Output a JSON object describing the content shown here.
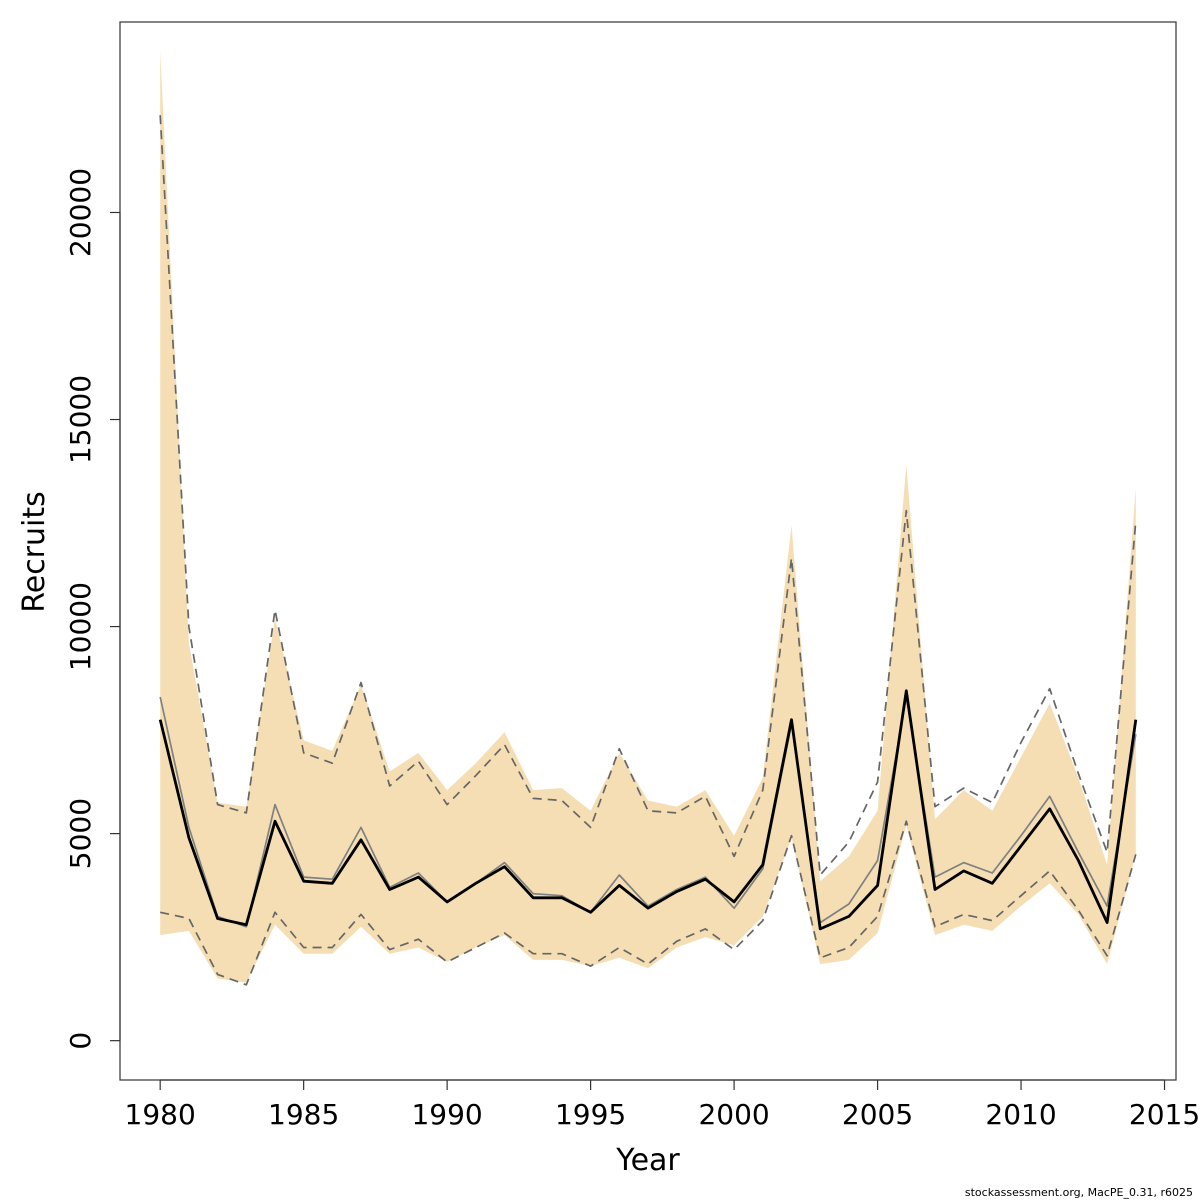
{
  "chart_data": {
    "type": "area",
    "xlabel": "Year",
    "ylabel": "Recruits",
    "xlim": [
      1978.6,
      2015.4
    ],
    "ylim": [
      -950,
      24600
    ],
    "x_ticks": [
      1980,
      1985,
      1990,
      1995,
      2000,
      2005,
      2010,
      2015
    ],
    "y_ticks": [
      0,
      5000,
      10000,
      15000,
      20000
    ],
    "x_tick_labels": [
      "1980",
      "1985",
      "1990",
      "1995",
      "2000",
      "2005",
      "2010",
      "2015"
    ],
    "y_tick_labels": [
      "0",
      "5000",
      "10000",
      "15000",
      "20000"
    ],
    "grid": false,
    "legend": "none",
    "x": [
      1980,
      1981,
      1982,
      1983,
      1984,
      1985,
      1986,
      1987,
      1988,
      1989,
      1990,
      1991,
      1992,
      1993,
      1994,
      1995,
      1996,
      1997,
      1998,
      1999,
      2000,
      2001,
      2002,
      2003,
      2004,
      2005,
      2006,
      2007,
      2008,
      2009,
      2010,
      2011,
      2012,
      2013,
      2014
    ],
    "series": [
      {
        "role": "band",
        "color": "#f5deb3",
        "upper": [
          23900,
          9600,
          5750,
          5650,
          10200,
          7250,
          7000,
          8600,
          6500,
          6950,
          6050,
          6700,
          7450,
          6050,
          6100,
          5550,
          6950,
          5800,
          5650,
          6050,
          4950,
          6350,
          12450,
          3850,
          4450,
          5550,
          13900,
          5350,
          6050,
          5550,
          6850,
          8150,
          6350,
          4250,
          13350
        ],
        "lower": [
          2550,
          2650,
          1500,
          1400,
          2800,
          2100,
          2100,
          2750,
          2100,
          2250,
          1900,
          2250,
          2550,
          1950,
          1950,
          1800,
          2000,
          1750,
          2250,
          2500,
          2300,
          3000,
          4900,
          1850,
          1950,
          2600,
          5200,
          2550,
          2800,
          2650,
          3250,
          3800,
          3050,
          1850,
          4500
        ]
      },
      {
        "role": "estimate",
        "color": "#000000",
        "values": [
          7750,
          4900,
          2950,
          2800,
          5300,
          3850,
          3800,
          4850,
          3650,
          3950,
          3350,
          3800,
          4200,
          3450,
          3450,
          3100,
          3750,
          3200,
          3600,
          3900,
          3350,
          4250,
          7750,
          2700,
          3000,
          3750,
          8450,
          3650,
          4100,
          3800,
          4700,
          5600,
          4350,
          2850,
          7750
        ]
      },
      {
        "role": "alternative",
        "color": "#808080",
        "values": [
          8300,
          5150,
          3000,
          2750,
          5700,
          3950,
          3900,
          5150,
          3700,
          4050,
          3350,
          3800,
          4300,
          3550,
          3500,
          3100,
          4000,
          3250,
          3650,
          3950,
          3200,
          4150,
          7650,
          2850,
          3300,
          4350,
          8300,
          3950,
          4300,
          4050,
          4950,
          5900,
          4550,
          3250,
          7400
        ]
      },
      {
        "role": "ci-upper",
        "color": "#666666",
        "dash": true,
        "values": [
          22350,
          10000,
          5700,
          5500,
          10400,
          6950,
          6700,
          8650,
          6150,
          6750,
          5700,
          6400,
          7150,
          5850,
          5800,
          5150,
          7050,
          5550,
          5500,
          5900,
          4450,
          6050,
          11650,
          4000,
          4800,
          6250,
          12800,
          5650,
          6100,
          5750,
          7200,
          8500,
          6450,
          4550,
          12550
        ]
      },
      {
        "role": "ci-lower",
        "color": "#666666",
        "dash": true,
        "values": [
          3100,
          2950,
          1600,
          1350,
          3100,
          2250,
          2250,
          3050,
          2200,
          2450,
          1900,
          2250,
          2600,
          2100,
          2100,
          1800,
          2250,
          1850,
          2400,
          2700,
          2200,
          2900,
          4950,
          2000,
          2250,
          3000,
          5300,
          2750,
          3050,
          2900,
          3500,
          4100,
          3150,
          2050,
          4500
        ]
      }
    ]
  },
  "footnote": "stockassessment.org, MacPE_0.31, r6025"
}
